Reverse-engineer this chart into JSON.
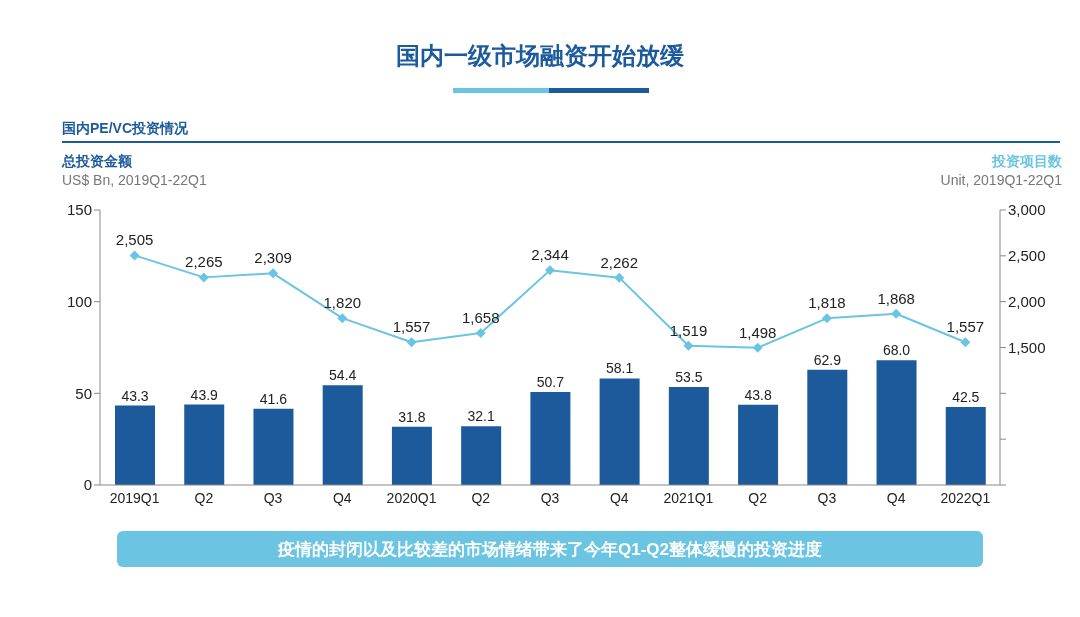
{
  "chart_data": {
    "type": "bar",
    "title": "国内一级市场融资开始放缓",
    "subtitle": "国内PE/VC投资情况",
    "ylabel": "总投资金额",
    "y2label": "投资项目数",
    "annotations": [
      "US$ Bn, 2019Q1-22Q1",
      "Unit, 2019Q1-22Q1",
      "疫情的封闭以及比较差的市场情绪带来了今年Q1-Q2整体缓慢的投资进度"
    ],
    "categories": [
      "2019Q1",
      "Q2",
      "Q3",
      "Q4",
      "2020Q1",
      "Q2",
      "Q3",
      "Q4",
      "2021Q1",
      "Q2",
      "Q3",
      "Q4",
      "2022Q1"
    ],
    "series": [
      {
        "color": "#1c5a9c",
        "values": [
          43.3,
          43.9,
          41.6,
          54.4,
          31.8,
          32.1,
          50.7,
          58.1,
          53.5,
          43.8,
          62.9,
          68.0,
          42.5
        ],
        "value_labels": [
          "43.3",
          "43.9",
          "41.6",
          "54.4",
          "31.8",
          "32.1",
          "50.7",
          "58.1",
          "53.5",
          "43.8",
          "62.9",
          "68.0",
          "42.5"
        ]
      },
      {
        "type": "line",
        "axis": "y2",
        "color": "#6ac4e2",
        "marker": "diamond",
        "line_style": "solid",
        "values": [
          2505,
          2265,
          2309,
          1820,
          1557,
          1658,
          2344,
          2262,
          1519,
          1498,
          1818,
          1868,
          1557
        ],
        "value_labels": [
          "2,505",
          "2,265",
          "2,309",
          "1,820",
          "1,557",
          "1,658",
          "2,344",
          "2,262",
          "1,519",
          "1,498",
          "1,818",
          "1,868",
          "1,557"
        ]
      }
    ],
    "ylim": [
      0,
      150
    ],
    "yticks": [
      0,
      50,
      100,
      150
    ],
    "y2lim": [
      0,
      3000
    ],
    "y2ticks": [
      {
        "value": 0,
        "label": null
      },
      {
        "value": 500,
        "label": null
      },
      {
        "value": 1000,
        "label": null
      },
      {
        "value": 1500,
        "label": "1,500"
      },
      {
        "value": 2000,
        "label": "2,000"
      },
      {
        "value": 2500,
        "label": "2,500"
      },
      {
        "value": 3000,
        "label": "3,000"
      }
    ]
  }
}
